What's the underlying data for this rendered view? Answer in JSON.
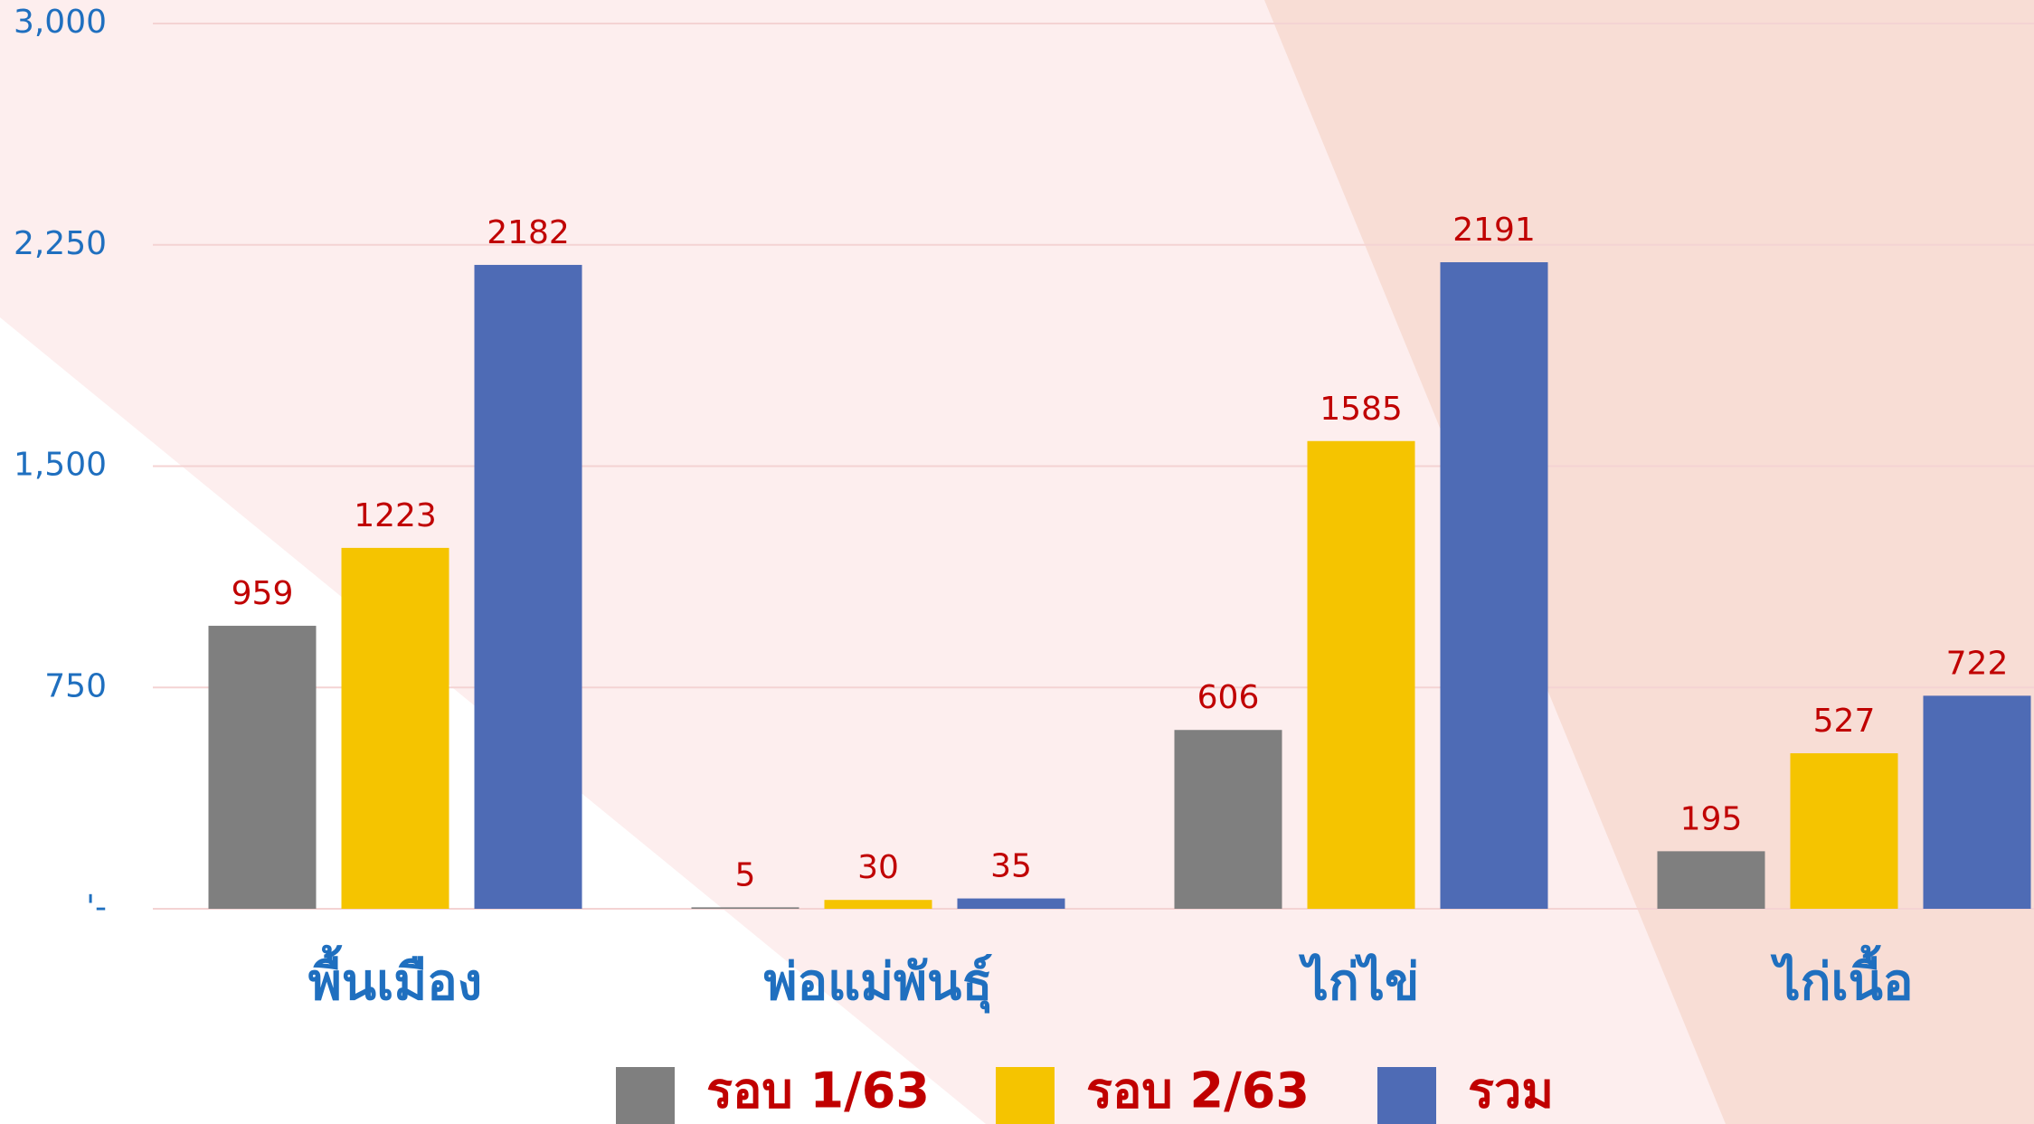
{
  "chart_data": {
    "type": "bar",
    "categories": [
      "พื้นเมือง",
      "พ่อแม่พันธุ์",
      "ไก่ไข่",
      "ไก่เนื้อ"
    ],
    "series": [
      {
        "name": "รอบ 1/63",
        "color": "#7f7f7f",
        "values": [
          959,
          5,
          606,
          195
        ]
      },
      {
        "name": "รอบ 2/63",
        "color": "#f5c400",
        "values": [
          1223,
          30,
          1585,
          527
        ]
      },
      {
        "name": "รวม",
        "color": "#4e6bb5",
        "values": [
          2182,
          35,
          2191,
          722
        ]
      }
    ],
    "ylim": [
      0,
      3000
    ],
    "yticks": [
      {
        "value": 0,
        "label": "'-"
      },
      750,
      {
        "value": 1500,
        "label": "1,500"
      },
      {
        "value": 2250,
        "label": "2,250"
      },
      {
        "value": 3000,
        "label": "3,000"
      }
    ],
    "grid": true,
    "legend": "bottom"
  }
}
